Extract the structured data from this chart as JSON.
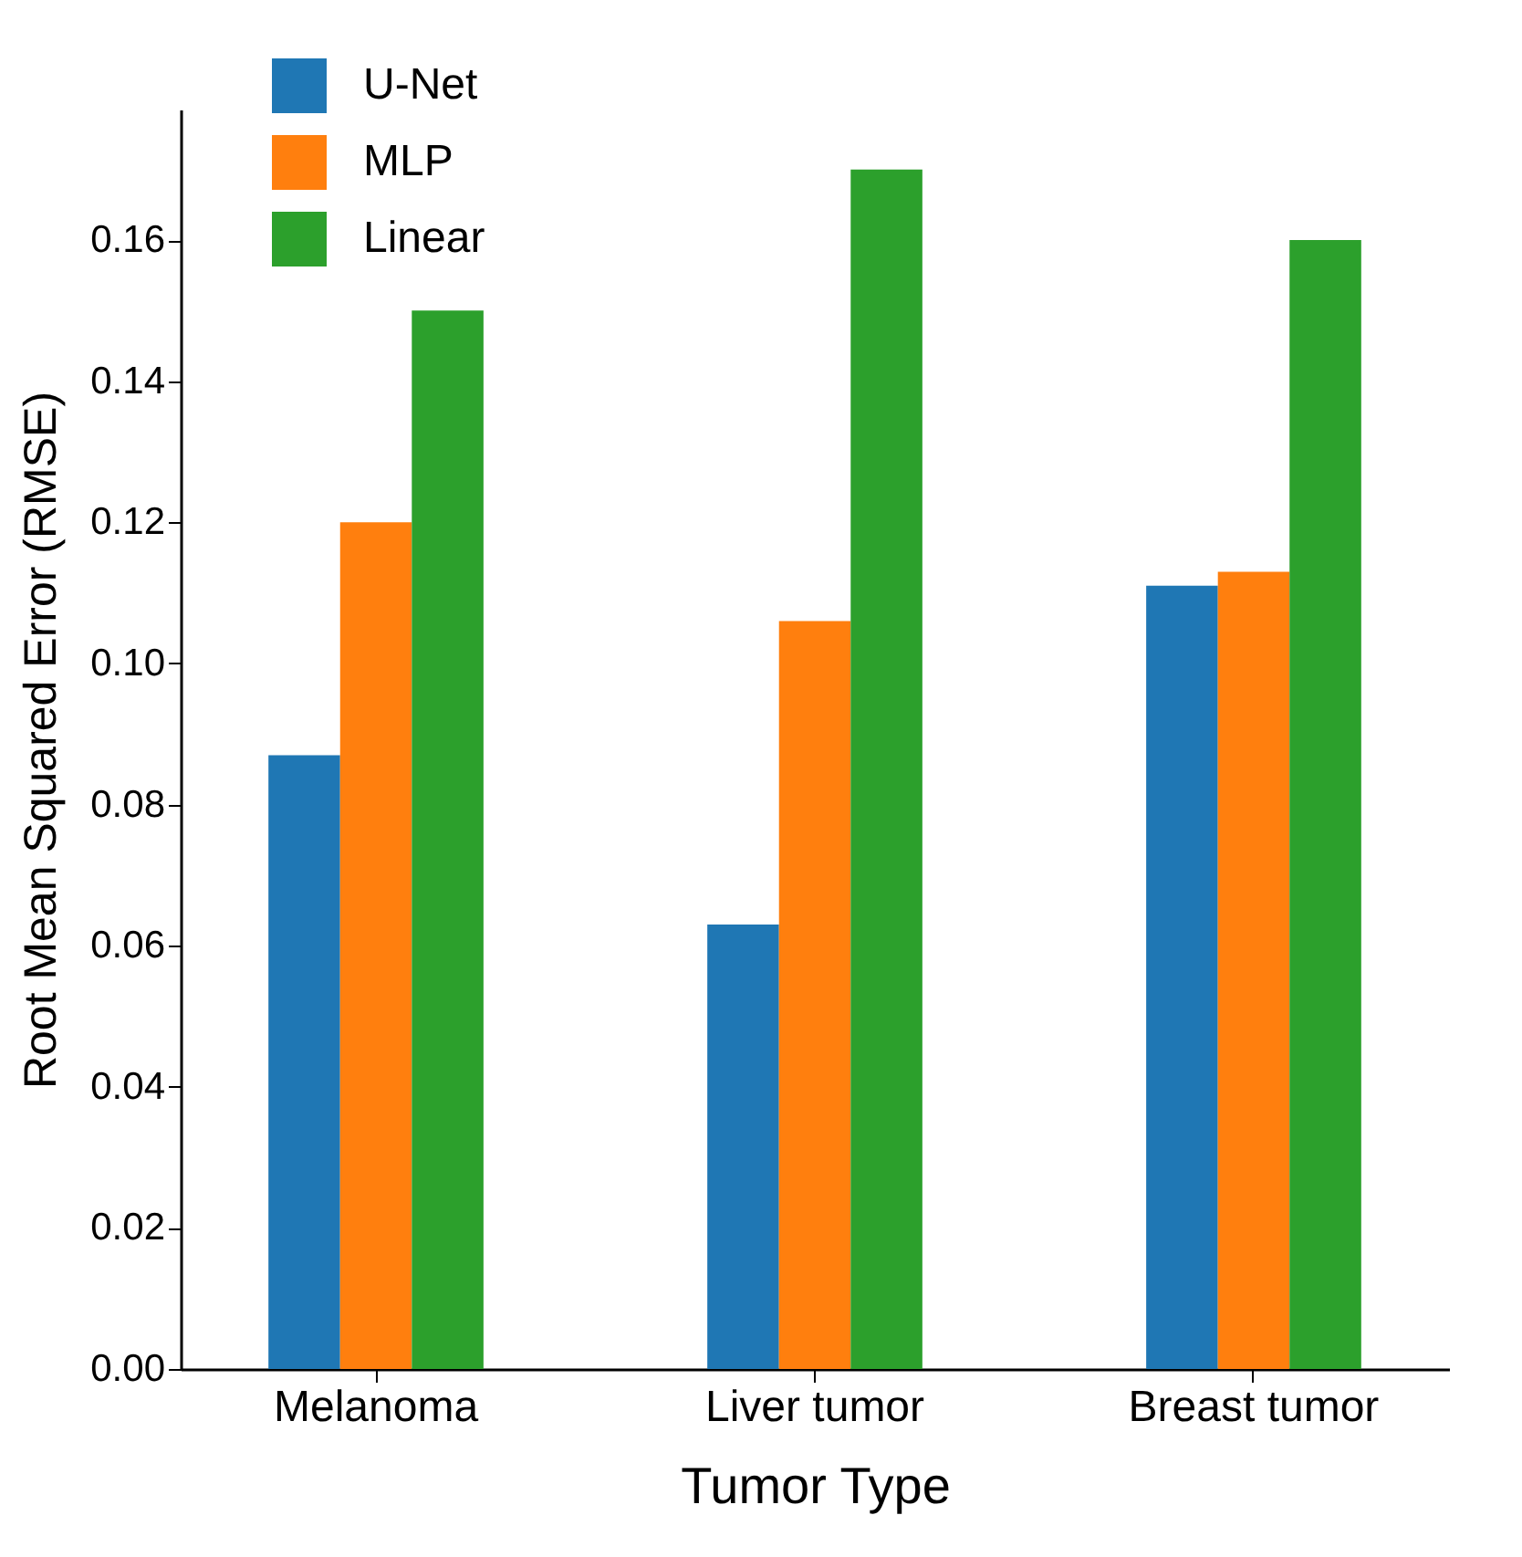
{
  "chart_data": {
    "type": "bar",
    "xlabel": "Tumor Type",
    "ylabel": "Root Mean Squared Error (RMSE)",
    "categories": [
      "Melanoma",
      "Liver tumor",
      "Breast tumor"
    ],
    "series": [
      {
        "name": "U-Net",
        "color": "#1f77b4",
        "values": [
          0.087,
          0.063,
          0.111
        ]
      },
      {
        "name": "MLP",
        "color": "#ff7f0e",
        "values": [
          0.12,
          0.106,
          0.113
        ]
      },
      {
        "name": "Linear",
        "color": "#2ca02c",
        "values": [
          0.15,
          0.17,
          0.16
        ]
      }
    ],
    "ylim": [
      0,
      0.1785
    ],
    "yticks": [
      {
        "value": 0,
        "label": "0.00"
      },
      {
        "value": 0.02,
        "label": "0.02"
      },
      {
        "value": 0.04,
        "label": "0.04"
      },
      {
        "value": 0.06,
        "label": "0.06"
      },
      {
        "value": 0.08,
        "label": "0.08"
      },
      {
        "value": 0.1,
        "label": "0.10"
      },
      {
        "value": 0.12,
        "label": "0.12"
      },
      {
        "value": 0.14,
        "label": "0.14"
      },
      {
        "value": 0.16,
        "label": "0.16"
      }
    ],
    "grid": false,
    "legend": "top left"
  }
}
